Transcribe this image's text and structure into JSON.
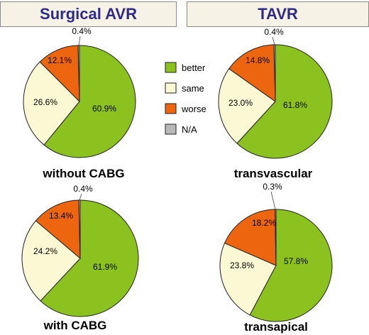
{
  "headers": {
    "left": "Surgical AVR",
    "right": "TAVR"
  },
  "colors": {
    "better": "#8cc21f",
    "same": "#fdf8d4",
    "worse": "#ed650f",
    "na": "#b8b8b8",
    "header_text": "#2e2a8a",
    "header_bg": "#f7f2e6"
  },
  "legend": {
    "items": [
      {
        "key": "better",
        "label": "better"
      },
      {
        "key": "same",
        "label": "same"
      },
      {
        "key": "worse",
        "label": "worse"
      },
      {
        "key": "na",
        "label": "N/A"
      }
    ]
  },
  "chart_data": [
    {
      "type": "pie",
      "group": "Surgical AVR",
      "title": "without CABG",
      "slices": [
        {
          "key": "better",
          "label": "better",
          "value": 60.9,
          "text": "60.9%"
        },
        {
          "key": "same",
          "label": "same",
          "value": 26.6,
          "text": "26.6%"
        },
        {
          "key": "worse",
          "label": "worse",
          "value": 12.1,
          "text": "12.1%"
        },
        {
          "key": "na",
          "label": "N/A",
          "value": 0.4,
          "text": "0.4%"
        }
      ]
    },
    {
      "type": "pie",
      "group": "TAVR",
      "title": "transvascular",
      "slices": [
        {
          "key": "better",
          "label": "better",
          "value": 61.8,
          "text": "61.8%"
        },
        {
          "key": "same",
          "label": "same",
          "value": 23.0,
          "text": "23.0%"
        },
        {
          "key": "worse",
          "label": "worse",
          "value": 14.8,
          "text": "14.8%"
        },
        {
          "key": "na",
          "label": "N/A",
          "value": 0.4,
          "text": "0.4%"
        }
      ]
    },
    {
      "type": "pie",
      "group": "Surgical AVR",
      "title": "with CABG",
      "slices": [
        {
          "key": "better",
          "label": "better",
          "value": 61.9,
          "text": "61.9%"
        },
        {
          "key": "same",
          "label": "same",
          "value": 24.2,
          "text": "24.2%"
        },
        {
          "key": "worse",
          "label": "worse",
          "value": 13.4,
          "text": "13.4%"
        },
        {
          "key": "na",
          "label": "N/A",
          "value": 0.4,
          "text": "0.4%"
        }
      ]
    },
    {
      "type": "pie",
      "group": "TAVR",
      "title": "transapical",
      "slices": [
        {
          "key": "better",
          "label": "better",
          "value": 57.8,
          "text": "57.8%"
        },
        {
          "key": "same",
          "label": "same",
          "value": 23.8,
          "text": "23.8%"
        },
        {
          "key": "worse",
          "label": "worse",
          "value": 18.2,
          "text": "18.2%"
        },
        {
          "key": "na",
          "label": "N/A",
          "value": 0.3,
          "text": "0.3%"
        }
      ]
    }
  ]
}
